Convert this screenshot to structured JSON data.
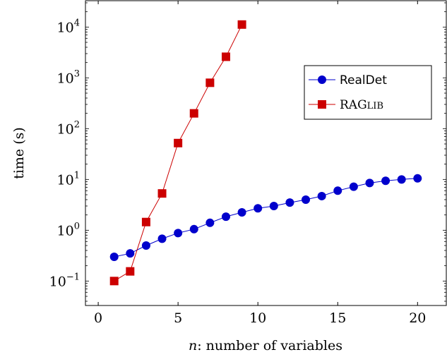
{
  "chart_data": {
    "type": "line",
    "xlabel_var": "n",
    "xlabel_rest": ": number of variables",
    "ylabel": "time (s)",
    "xlim": [
      -0.8,
      21.8
    ],
    "ylim": [
      0.033,
      33000
    ],
    "yscale": "log",
    "grid": false,
    "legend_position": "right",
    "x_ticks": [
      "0",
      "5",
      "10",
      "15",
      "20"
    ],
    "x_tick_values": [
      0,
      5,
      10,
      15,
      20
    ],
    "y_ticks": [
      {
        "value": 0.1,
        "base": "10",
        "exp": "−1"
      },
      {
        "value": 1,
        "base": "10",
        "exp": "0"
      },
      {
        "value": 10,
        "base": "10",
        "exp": "1"
      },
      {
        "value": 100,
        "base": "10",
        "exp": "2"
      },
      {
        "value": 1000,
        "base": "10",
        "exp": "3"
      },
      {
        "value": 10000,
        "base": "10",
        "exp": "4"
      }
    ],
    "series": [
      {
        "name": "RealDet",
        "color": "#0000cc",
        "marker": "circle",
        "x": [
          1,
          2,
          3,
          4,
          5,
          6,
          7,
          8,
          9,
          10,
          11,
          12,
          13,
          14,
          15,
          16,
          17,
          18,
          19,
          20
        ],
        "values": [
          0.3,
          0.35,
          0.5,
          0.68,
          0.88,
          1.05,
          1.4,
          1.85,
          2.25,
          2.7,
          3.0,
          3.5,
          4.0,
          4.7,
          6.0,
          7.2,
          8.5,
          9.4,
          10.0,
          10.5
        ]
      },
      {
        "name_main": "RAG",
        "name_smallcaps": "LIB",
        "color": "#cc0000",
        "marker": "square",
        "x": [
          1,
          2,
          3,
          4,
          5,
          6,
          7,
          8,
          9
        ],
        "values": [
          0.1,
          0.155,
          1.45,
          5.3,
          52,
          200,
          800,
          2600,
          11200
        ]
      }
    ]
  }
}
